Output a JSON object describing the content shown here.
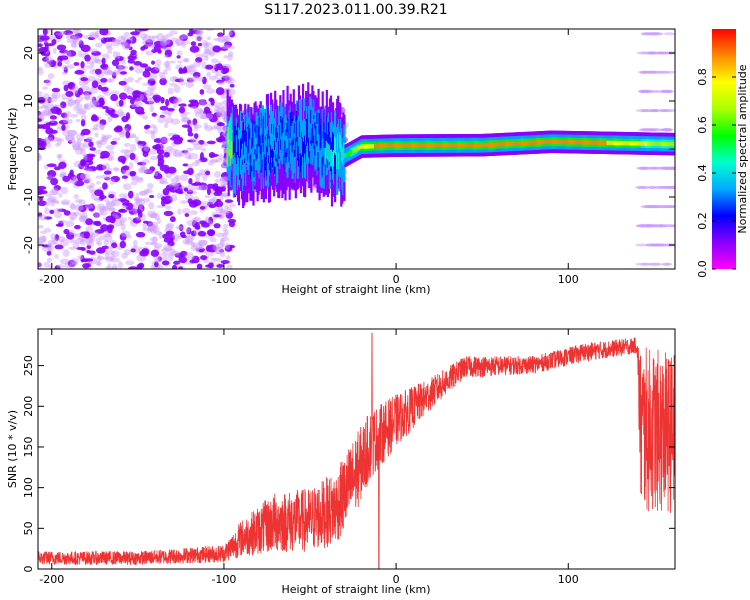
{
  "title": "S117.2023.011.00.39.R21",
  "chart_data": [
    {
      "type": "heatmap",
      "xlabel": "Height of straight line (km)",
      "ylabel": "Frequency (Hz)",
      "xlim": [
        -208,
        162
      ],
      "ylim": [
        -25,
        25
      ],
      "xticks": [
        -200,
        -100,
        0,
        100
      ],
      "yticks": [
        -20,
        -10,
        0,
        10,
        20
      ],
      "colorbar": {
        "label": "Normalized spectral amplitude",
        "range": [
          0.0,
          1.0
        ],
        "ticks": [
          "0.0",
          "0.2",
          "0.4",
          "0.6",
          "0.8"
        ],
        "colors": [
          "#ff00ff",
          "#8800ff",
          "#0000ff",
          "#00aaff",
          "#00ffcc",
          "#00ff00",
          "#aaff00",
          "#ffff00",
          "#ff8800",
          "#ff0000"
        ]
      },
      "ridge": {
        "description_values": [
          {
            "x": -95,
            "y": -1.2,
            "amp": 0.35
          },
          {
            "x": -70,
            "y": 1.0,
            "amp": 0.4
          },
          {
            "x": -50,
            "y": 2.0,
            "amp": 0.4
          },
          {
            "x": -30,
            "y": -1.5,
            "amp": 0.5
          },
          {
            "x": -20,
            "y": 0.5,
            "amp": 0.85
          },
          {
            "x": 0,
            "y": 0.7,
            "amp": 0.95
          },
          {
            "x": 50,
            "y": 0.8,
            "amp": 0.95
          },
          {
            "x": 90,
            "y": 1.5,
            "amp": 0.9
          },
          {
            "x": 120,
            "y": 1.3,
            "amp": 0.9
          },
          {
            "x": 162,
            "y": 1.0,
            "amp": 0.7
          }
        ]
      }
    },
    {
      "type": "line",
      "xlabel": "Height of straight line (km)",
      "ylabel": "SNR (10 * v/v)",
      "xlim": [
        -208,
        162
      ],
      "ylim": [
        0,
        295
      ],
      "xticks": [
        -200,
        -100,
        0,
        100
      ],
      "yticks": [
        0,
        50,
        100,
        150,
        200,
        250
      ],
      "color": "#ee3333",
      "series_envelope": [
        {
          "x": -208,
          "lo": 5,
          "hi": 22
        },
        {
          "x": -150,
          "lo": 5,
          "hi": 22
        },
        {
          "x": -100,
          "lo": 8,
          "hi": 30
        },
        {
          "x": -90,
          "lo": 15,
          "hi": 60
        },
        {
          "x": -70,
          "lo": 20,
          "hi": 95
        },
        {
          "x": -50,
          "lo": 20,
          "hi": 100
        },
        {
          "x": -35,
          "lo": 30,
          "hi": 120
        },
        {
          "x": -25,
          "lo": 60,
          "hi": 160
        },
        {
          "x": -15,
          "lo": 110,
          "hi": 195
        },
        {
          "x": 0,
          "lo": 150,
          "hi": 215
        },
        {
          "x": 20,
          "lo": 195,
          "hi": 235
        },
        {
          "x": 40,
          "lo": 235,
          "hi": 262
        },
        {
          "x": 80,
          "lo": 240,
          "hi": 262
        },
        {
          "x": 110,
          "lo": 255,
          "hi": 278
        },
        {
          "x": 140,
          "lo": 265,
          "hi": 285
        },
        {
          "x": 142,
          "lo": 68,
          "hi": 275
        },
        {
          "x": 162,
          "lo": 68,
          "hi": 265
        }
      ]
    }
  ]
}
